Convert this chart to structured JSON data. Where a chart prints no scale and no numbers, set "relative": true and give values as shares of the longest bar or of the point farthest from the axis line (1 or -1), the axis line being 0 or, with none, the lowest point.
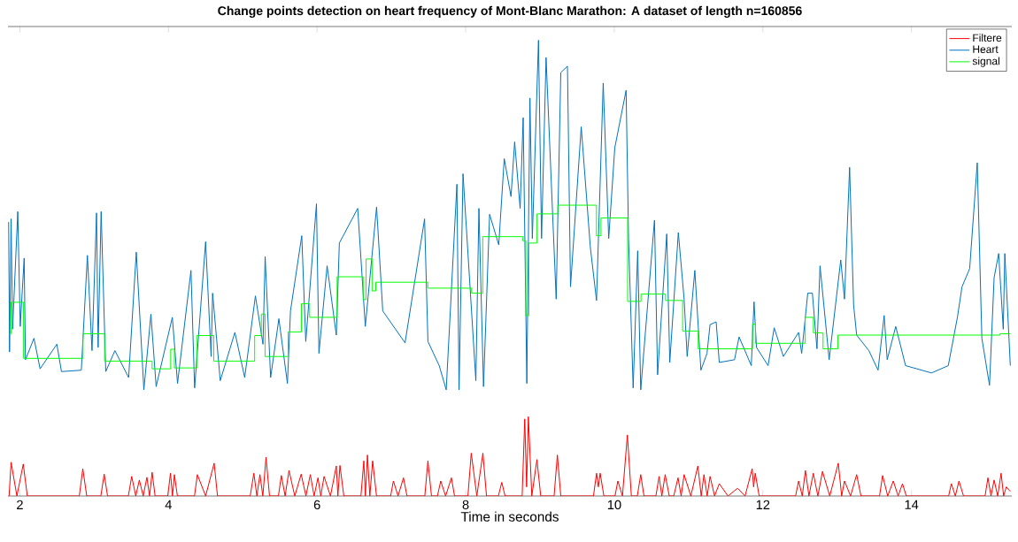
{
  "chart_data": {
    "type": "line",
    "title": "Change points detection on heart frequency of Mont-Blanc Marathon: A dataset of length n=160856",
    "xlabel": "Time in seconds",
    "relative": true,
    "legend": "top right",
    "xlim": [
      1.84,
      15.35
    ],
    "xticks": [
      2,
      4,
      6,
      8,
      10,
      12,
      14
    ],
    "series": [
      {
        "name": "Filtere",
        "color": "#ff0000",
        "x": [
          1.855,
          1.882,
          1.96,
          2.046,
          2.1,
          2.8,
          2.847,
          2.9,
          3.09,
          3.135,
          3.18,
          3.46,
          3.505,
          3.56,
          3.608,
          3.66,
          3.71,
          3.745,
          3.78,
          3.82,
          3.99,
          4.027,
          4.054,
          4.08,
          4.12,
          4.35,
          4.389,
          4.5,
          4.615,
          4.66,
          5.1,
          5.149,
          5.19,
          5.231,
          5.27,
          5.313,
          5.36,
          5.48,
          5.519,
          5.57,
          5.622,
          5.7,
          5.786,
          5.85,
          5.909,
          5.96,
          6.012,
          6.05,
          6.094,
          6.18,
          6.259,
          6.28,
          6.308,
          6.36,
          6.59,
          6.629,
          6.65,
          6.678,
          6.71,
          6.748,
          6.8,
          6.99,
          7.027,
          7.09,
          7.163,
          7.21,
          7.45,
          7.492,
          7.54,
          7.62,
          7.664,
          7.73,
          7.808,
          7.85,
          8.03,
          8.075,
          8.15,
          8.232,
          8.28,
          8.44,
          8.486,
          8.53,
          8.76,
          8.795,
          8.82,
          8.844,
          8.89,
          8.959,
          9.01,
          9.19,
          9.234,
          9.28,
          9.72,
          9.761,
          9.785,
          9.81,
          9.86,
          10.01,
          10.048,
          10.11,
          10.176,
          10.23,
          10.31,
          10.356,
          10.4,
          10.56,
          10.603,
          10.64,
          10.685,
          10.74,
          10.8,
          10.858,
          10.9,
          10.94,
          11.03,
          11.125,
          11.17,
          11.207,
          11.25,
          11.289,
          11.35,
          11.413,
          11.53,
          11.659,
          11.76,
          11.856,
          11.875,
          11.897,
          11.95,
          12.44,
          12.481,
          12.53,
          12.572,
          12.62,
          12.678,
          12.74,
          12.802,
          12.9,
          13.015,
          13.06,
          13.098,
          13.18,
          13.262,
          13.32,
          13.57,
          13.611,
          13.68,
          13.755,
          13.82,
          13.879,
          13.93,
          14.5,
          14.536,
          14.59,
          14.639,
          14.7,
          14.99,
          15.029,
          15.07,
          15.112,
          15.16,
          15.206,
          15.24,
          15.276,
          15.33
        ],
        "values": [
          0,
          0.074,
          0,
          0.07,
          0,
          0,
          0.06,
          0,
          0,
          0.048,
          0,
          0,
          0.043,
          0,
          0.035,
          0,
          0.041,
          0,
          0.052,
          0,
          0,
          0.05,
          0,
          0.047,
          0,
          0,
          0.047,
          0,
          0.072,
          0,
          0,
          0.05,
          0,
          0.047,
          0,
          0.085,
          0,
          0,
          0.045,
          0,
          0.056,
          0,
          0.048,
          0,
          0.047,
          0,
          0.04,
          0,
          0.043,
          0,
          0.066,
          0,
          0.067,
          0,
          0,
          0.077,
          0,
          0.09,
          0,
          0.077,
          0,
          0,
          0.033,
          0,
          0.04,
          0,
          0,
          0.077,
          0,
          0,
          0.033,
          0,
          0.04,
          0,
          0,
          0.094,
          0,
          0.094,
          0,
          0,
          0.03,
          0,
          0,
          0.169,
          0.02,
          0.174,
          0,
          0.08,
          0,
          0,
          0.09,
          0,
          0,
          0.05,
          0.02,
          0.05,
          0,
          0,
          0.033,
          0,
          0.134,
          0,
          0,
          0.047,
          0,
          0,
          0.043,
          0,
          0.047,
          0,
          0,
          0.04,
          0,
          0.047,
          0,
          0.066,
          0,
          0.047,
          0,
          0.043,
          0,
          0.027,
          0,
          0.017,
          0,
          0.06,
          0.02,
          0.05,
          0,
          0,
          0.033,
          0,
          0.056,
          0,
          0.05,
          0,
          0.054,
          0,
          0.072,
          0,
          0.033,
          0,
          0.047,
          0,
          0,
          0.045,
          0,
          0.033,
          0,
          0.027,
          0,
          0,
          0.027,
          0,
          0.033,
          0,
          0,
          0.04,
          0,
          0.035,
          0,
          0.05,
          0,
          0.02,
          0.01
        ]
      },
      {
        "name": "Heart",
        "color": "#0072bd",
        "x": [
          1.849,
          1.861,
          1.882,
          1.902,
          1.972,
          2.005,
          2.058,
          2.075,
          2.19,
          2.272,
          2.498,
          2.56,
          2.827,
          2.909,
          2.971,
          3.032,
          3.053,
          3.094,
          3.156,
          3.279,
          3.464,
          3.567,
          3.669,
          3.764,
          3.834,
          4.052,
          4.122,
          4.303,
          4.352,
          4.5,
          4.574,
          4.594,
          4.697,
          4.894,
          5.026,
          5.17,
          5.272,
          5.301,
          5.375,
          5.486,
          5.601,
          5.642,
          5.794,
          5.848,
          5.992,
          6.025,
          6.135,
          6.259,
          6.3,
          6.547,
          6.649,
          6.801,
          6.884,
          7.184,
          7.447,
          7.492,
          7.644,
          7.738,
          7.882,
          7.911,
          7.964,
          8.137,
          8.178,
          8.24,
          8.322,
          8.445,
          8.519,
          8.61,
          8.659,
          8.733,
          8.774,
          8.823,
          8.865,
          8.897,
          8.98,
          9.021,
          9.082,
          9.218,
          9.28,
          9.37,
          9.411,
          9.555,
          9.678,
          9.761,
          9.851,
          9.925,
          10.007,
          10.159,
          10.192,
          10.254,
          10.315,
          10.356,
          10.541,
          10.583,
          10.706,
          10.747,
          10.862,
          10.94,
          10.981,
          11.084,
          11.166,
          11.248,
          11.289,
          11.371,
          11.413,
          11.618,
          11.68,
          11.844,
          11.881,
          11.914,
          12.07,
          12.152,
          12.276,
          12.481,
          12.522,
          12.604,
          12.666,
          12.728,
          12.769,
          12.892,
          13.048,
          13.098,
          13.167,
          13.221,
          13.262,
          13.426,
          13.55,
          13.632,
          13.673,
          13.788,
          13.92,
          14.269,
          14.495,
          14.618,
          14.68,
          14.783,
          14.885,
          14.947,
          15.05,
          15.112,
          15.173,
          15.235,
          15.256,
          15.33
        ],
        "values": [
          0.601,
          0.316,
          0.608,
          0.366,
          0.624,
          0.372,
          0.522,
          0.299,
          0.346,
          0.279,
          0.333,
          0.273,
          0.276,
          0.528,
          0.319,
          0.621,
          0.326,
          0.624,
          0.273,
          0.319,
          0.26,
          0.535,
          0.233,
          0.399,
          0.24,
          0.392,
          0.247,
          0.495,
          0.237,
          0.558,
          0.306,
          0.445,
          0.253,
          0.359,
          0.26,
          0.439,
          0.333,
          0.525,
          0.26,
          0.389,
          0.247,
          0.406,
          0.571,
          0.339,
          0.641,
          0.313,
          0.505,
          0.353,
          0.555,
          0.631,
          0.372,
          0.634,
          0.406,
          0.336,
          0.608,
          0.339,
          0.286,
          0.233,
          0.684,
          0.233,
          0.707,
          0.253,
          0.631,
          0.24,
          0.618,
          0.551,
          0.74,
          0.657,
          0.777,
          0.631,
          0.83,
          0.247,
          0.873,
          0.565,
          1,
          0.565,
          0.962,
          0.432,
          0.929,
          0.943,
          0.459,
          0.81,
          0.545,
          0.429,
          0.906,
          0.565,
          0.764,
          0.89,
          0.565,
          0.237,
          0.538,
          0.233,
          0.605,
          0.266,
          0.575,
          0.293,
          0.578,
          0.432,
          0.306,
          0.495,
          0.276,
          0.313,
          0.376,
          0.382,
          0.293,
          0.299,
          0.349,
          0.286,
          0.426,
          0.326,
          0.286,
          0.369,
          0.306,
          0.359,
          0.313,
          0.445,
          0.445,
          0.323,
          0.505,
          0.299,
          0.518,
          0.432,
          0.721,
          0.419,
          0.353,
          0.319,
          0.276,
          0.396,
          0.299,
          0.372,
          0.286,
          0.27,
          0.286,
          0.392,
          0.459,
          0.499,
          0.731,
          0.346,
          0.243,
          0.479,
          0.532,
          0.366,
          0.532,
          0.286
        ]
      },
      {
        "name": "signal",
        "color": "#00ff00",
        "type": "step",
        "x": [
          1.86,
          1.88,
          2.05,
          2.85,
          3.14,
          3.78,
          4.03,
          4.08,
          4.38,
          4.61,
          5.16,
          5.25,
          5.3,
          5.61,
          5.79,
          5.9,
          6.27,
          6.62,
          6.66,
          6.74,
          6.79,
          7.49,
          8.08,
          8.23,
          8.77,
          8.81,
          8.85,
          8.96,
          9.24,
          9.76,
          9.82,
          10.18,
          10.36,
          10.69,
          10.92,
          11.13,
          11.86,
          11.9,
          12.57,
          12.68,
          12.81,
          13.01,
          15.19,
          15.33
        ],
        "values": [
          0.356,
          0.425,
          0.302,
          0.356,
          0.296,
          0.279,
          0.322,
          0.281,
          0.352,
          0.296,
          0.352,
          0.399,
          0.306,
          0.36,
          0.422,
          0.392,
          0.481,
          0.431,
          0.52,
          0.45,
          0.469,
          0.456,
          0.445,
          0.569,
          0.56,
          0.396,
          0.555,
          0.619,
          0.638,
          0.571,
          0.61,
          0.427,
          0.443,
          0.429,
          0.362,
          0.323,
          0.377,
          0.335,
          0.392,
          0.358,
          0.323,
          0.353,
          0.356,
          0.356
        ]
      }
    ]
  }
}
